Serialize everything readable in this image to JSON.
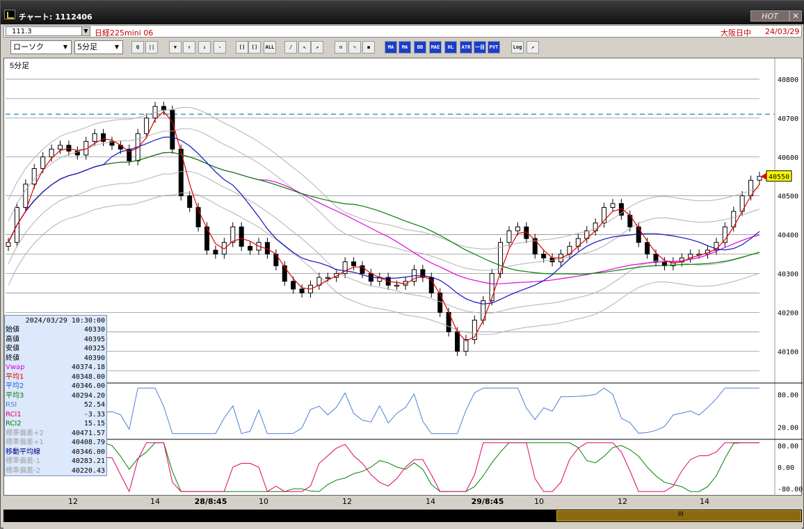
{
  "window": {
    "title": "チャート: 1112406",
    "hot_label": "HOT",
    "close_glyph": "✕"
  },
  "instrument": {
    "code": "111.3",
    "name": "日経225mini 06",
    "session": "大阪日中",
    "date": "24/03/29"
  },
  "toolbar": {
    "chart_type": "ローソク",
    "interval": "5分足",
    "buttons": [
      {
        "name": "zoom-icon",
        "label": "Q"
      },
      {
        "name": "bar-icon",
        "label": "||"
      },
      {
        "name": "scroll-down-icon",
        "label": "▼"
      },
      {
        "name": "chart-up-icon",
        "label": "↑"
      },
      {
        "name": "chart-down-icon",
        "label": "↓"
      },
      {
        "name": "disabled-icon",
        "label": "-"
      },
      {
        "name": "candle-a-icon",
        "label": "[]"
      },
      {
        "name": "candle-b-icon",
        "label": "[]"
      },
      {
        "name": "all-button",
        "label": "ALL"
      },
      {
        "name": "pen-icon",
        "label": "/"
      },
      {
        "name": "cursor-icon",
        "label": "↖"
      },
      {
        "name": "arrow-icon",
        "label": "↗"
      },
      {
        "name": "gear-icon",
        "label": "⚙"
      },
      {
        "name": "brush-icon",
        "label": "✎"
      },
      {
        "name": "color-icon",
        "label": "◼"
      },
      {
        "name": "indicator-ma-icon",
        "label": "МА"
      },
      {
        "name": "indicator-ma2-icon",
        "label": "MA"
      },
      {
        "name": "indicator-bb-icon",
        "label": "BB"
      },
      {
        "name": "indicator-mae-icon",
        "label": "MAE"
      },
      {
        "name": "indicator-hl-icon",
        "label": "HL"
      },
      {
        "name": "indicator-atr-icon",
        "label": "ATR"
      },
      {
        "name": "indicator-ichi-icon",
        "label": "一目"
      },
      {
        "name": "indicator-pvt-icon",
        "label": "PVT"
      },
      {
        "name": "log-button",
        "label": "Log"
      },
      {
        "name": "export-icon",
        "label": "↗"
      }
    ]
  },
  "chart_data": {
    "type": "candlestick",
    "interval_label": "5分足",
    "y_ticks": [
      "40800",
      "40700",
      "40600",
      "40500",
      "40400",
      "40300",
      "40200",
      "40100"
    ],
    "ylim": [
      40020,
      40850
    ],
    "current_price": "40550",
    "dashed_level": 40710,
    "rsi_ticks": [
      "80.00",
      "20.00"
    ],
    "rci_ticks": [
      "80.00",
      "0.00",
      "-80.00"
    ],
    "x_ticks": [
      "12",
      "14",
      "28/8:45",
      "10",
      "12",
      "14",
      "29/8:45",
      "10",
      "12",
      "14"
    ],
    "colors": {
      "sma1": "#e00000",
      "sma2": "#1010c0",
      "sma3": "#008000",
      "vwap": "#e000e0",
      "rsi": "#4a7fd4",
      "rci1": "#e0006a",
      "rci2": "#008000",
      "bands": "#b0b0b0",
      "dashed": "#1a8aa0"
    },
    "series": [
      {
        "name": "ローソク",
        "values": [
          40380,
          40470,
          40530,
          40570,
          40600,
          40620,
          40630,
          40615,
          40605,
          40640,
          40660,
          40640,
          40630,
          40620,
          40590,
          40660,
          40700,
          40730,
          40720,
          40620,
          40500,
          40470,
          40420,
          40360,
          40350,
          40380,
          40420,
          40370,
          40360,
          40380,
          40350,
          40320,
          40280,
          40260,
          40250,
          40270,
          40290,
          40290,
          40300,
          40330,
          40320,
          40300,
          40280,
          40290,
          40270,
          40270,
          40280,
          40310,
          40290,
          40250,
          40200,
          40150,
          40100,
          40130,
          40180,
          40230,
          40300,
          40380,
          40410,
          40420,
          40390,
          40350,
          40340,
          40330,
          40350,
          40370,
          40390,
          40410,
          40430,
          40470,
          40480,
          40450,
          40420,
          40380,
          40350,
          40330,
          40320,
          40330,
          40340,
          40350,
          40350,
          40360,
          40380,
          40420,
          40460,
          40500,
          40540,
          40550
        ]
      }
    ]
  },
  "info": {
    "datetime": "2024/03/29  10:30:00",
    "rows": [
      {
        "key": "始値",
        "value": "40330",
        "color": "#000000"
      },
      {
        "key": "高値",
        "value": "40395",
        "color": "#000000"
      },
      {
        "key": "安値",
        "value": "40325",
        "color": "#000000"
      },
      {
        "key": "終値",
        "value": "40390",
        "color": "#000000"
      },
      {
        "key": "Vwap",
        "value": "40374.18",
        "color": "#e000e0"
      },
      {
        "key": "平均1",
        "value": "40348.00",
        "color": "#e00000"
      },
      {
        "key": "平均2",
        "value": "40346.00",
        "color": "#2060d0"
      },
      {
        "key": "平均3",
        "value": "40294.20",
        "color": "#008000"
      },
      {
        "key": "RSI",
        "value": "52.54",
        "color": "#4a7fd4"
      },
      {
        "key": "RCI1",
        "value": "-3.33",
        "color": "#e0006a"
      },
      {
        "key": "RCI2",
        "value": "15.15",
        "color": "#008000"
      },
      {
        "key": "標準偏差+2",
        "value": "40471.57",
        "color": "#a0a0a0"
      },
      {
        "key": "標準偏差+1",
        "value": "40408.79",
        "color": "#a0a0a0"
      },
      {
        "key": "移動平均線",
        "value": "40346.00",
        "color": "#000080"
      },
      {
        "key": "標準偏差-1",
        "value": "40283.21",
        "color": "#a0a0a0"
      },
      {
        "key": "標準偏差-2",
        "value": "40220.43",
        "color": "#a0a0a0"
      }
    ]
  },
  "scroll": {
    "grip_glyph": "III"
  }
}
